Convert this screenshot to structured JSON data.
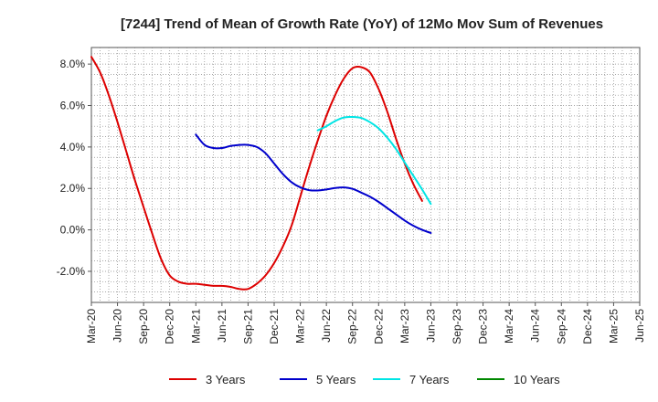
{
  "chart_data": {
    "type": "line",
    "title": "[7244]  Trend of Mean of Growth Rate (YoY) of 12Mo Mov Sum of Revenues",
    "xlabel": "",
    "ylabel": "",
    "x_tick_labels": [
      "Mar-20",
      "Jun-20",
      "Sep-20",
      "Dec-20",
      "Mar-21",
      "Jun-21",
      "Sep-21",
      "Dec-21",
      "Mar-22",
      "Jun-22",
      "Sep-22",
      "Dec-22",
      "Mar-23",
      "Jun-23",
      "Sep-23",
      "Dec-23",
      "Mar-24",
      "Jun-24",
      "Sep-24",
      "Dec-24",
      "Mar-25",
      "Jun-25"
    ],
    "y_tick_values": [
      -2,
      0,
      2,
      4,
      6,
      8
    ],
    "y_tick_labels": [
      "-2.0%",
      "0.0%",
      "2.0%",
      "4.0%",
      "6.0%",
      "8.0%"
    ],
    "ylim": [
      -3.5,
      8.8
    ],
    "grid": true,
    "legend_position": "bottom",
    "series": [
      {
        "name": "3 Years",
        "color": "#dd0000",
        "start_index": 0,
        "values": [
          8.35,
          7.6,
          6.5,
          5.2,
          3.8,
          2.4,
          1.1,
          -0.2,
          -1.4,
          -2.2,
          -2.5,
          -2.6,
          -2.6,
          -2.65,
          -2.7,
          -2.7,
          -2.75,
          -2.85,
          -2.85,
          -2.6,
          -2.2,
          -1.6,
          -0.8,
          0.2,
          1.6,
          3.0,
          4.3,
          5.5,
          6.5,
          7.3,
          7.8,
          7.85,
          7.6,
          6.8,
          5.7,
          4.4,
          3.2,
          2.2,
          1.4
        ]
      },
      {
        "name": "5 Years",
        "color": "#0000cc",
        "start_index": 12,
        "values": [
          4.6,
          4.1,
          3.95,
          3.95,
          4.05,
          4.1,
          4.1,
          4.0,
          3.7,
          3.2,
          2.7,
          2.3,
          2.05,
          1.92,
          1.9,
          1.95,
          2.02,
          2.05,
          1.98,
          1.8,
          1.6,
          1.35,
          1.05,
          0.75,
          0.45,
          0.2,
          0.0,
          -0.15
        ]
      },
      {
        "name": "7 Years",
        "color": "#00e5e5",
        "start_index": 26,
        "values": [
          4.8,
          5.0,
          5.25,
          5.42,
          5.45,
          5.4,
          5.2,
          4.9,
          4.45,
          3.9,
          3.25,
          2.6,
          1.95,
          1.25
        ]
      },
      {
        "name": "10 Years",
        "color": "#008800",
        "start_index": 0,
        "values": []
      }
    ]
  }
}
